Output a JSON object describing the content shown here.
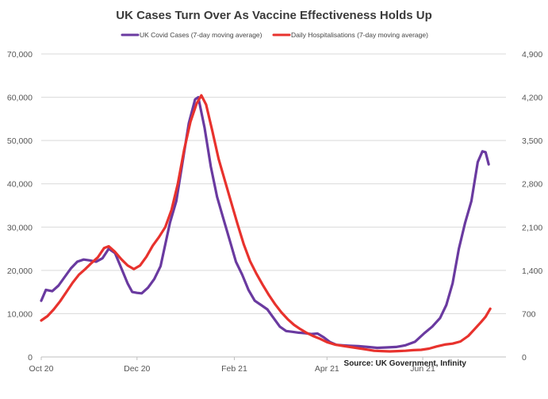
{
  "chart_data": {
    "type": "line",
    "title": "UK Cases Turn Over As Vaccine Effectiveness Holds Up",
    "source": "Source: UK Government, Infinity",
    "x_axis": {
      "range": [
        "2020-10-01",
        "2021-07-24"
      ],
      "tick_labels": [
        {
          "date": "2020-10-01",
          "label": "Oct 20"
        },
        {
          "date": "2020-12-01",
          "label": "Dec 20"
        },
        {
          "date": "2021-02-01",
          "label": "Feb 21"
        },
        {
          "date": "2021-04-01",
          "label": "Apr 21"
        },
        {
          "date": "2021-06-01",
          "label": "Jun 21"
        }
      ]
    },
    "y_axis_left": {
      "range": [
        0,
        70000
      ],
      "tick_labels": [
        "0",
        "10,000",
        "20,000",
        "30,000",
        "40,000",
        "50,000",
        "60,000",
        "70,000"
      ]
    },
    "y_axis_right": {
      "range": [
        0,
        4900
      ],
      "tick_labels": [
        "0",
        "700",
        "1,400",
        "2,100",
        "2,800",
        "3,500",
        "4,200",
        "4,900"
      ]
    },
    "grid": "horizontal",
    "legend_position": "top",
    "series": [
      {
        "name": "UK Covid Cases (7-day moving average)",
        "axis": "left",
        "color": "#6a3aa0",
        "points": [
          [
            "2020-10-01",
            13000
          ],
          [
            "2020-10-04",
            15500
          ],
          [
            "2020-10-08",
            15200
          ],
          [
            "2020-10-12",
            16500
          ],
          [
            "2020-10-16",
            18500
          ],
          [
            "2020-10-20",
            20500
          ],
          [
            "2020-10-24",
            22000
          ],
          [
            "2020-10-28",
            22500
          ],
          [
            "2020-11-01",
            22300
          ],
          [
            "2020-11-05",
            22000
          ],
          [
            "2020-11-09",
            22800
          ],
          [
            "2020-11-13",
            25000
          ],
          [
            "2020-11-17",
            24000
          ],
          [
            "2020-11-21",
            20500
          ],
          [
            "2020-11-25",
            17000
          ],
          [
            "2020-11-28",
            15000
          ],
          [
            "2020-12-01",
            14800
          ],
          [
            "2020-12-04",
            14700
          ],
          [
            "2020-12-08",
            16000
          ],
          [
            "2020-12-12",
            18000
          ],
          [
            "2020-12-16",
            21000
          ],
          [
            "2020-12-19",
            26000
          ],
          [
            "2020-12-22",
            31000
          ],
          [
            "2020-12-26",
            36000
          ],
          [
            "2020-12-30",
            45000
          ],
          [
            "2021-01-03",
            54000
          ],
          [
            "2021-01-07",
            59500
          ],
          [
            "2021-01-09",
            60000
          ],
          [
            "2021-01-13",
            53000
          ],
          [
            "2021-01-17",
            44000
          ],
          [
            "2021-01-21",
            37000
          ],
          [
            "2021-01-25",
            32000
          ],
          [
            "2021-01-29",
            27000
          ],
          [
            "2021-02-02",
            22000
          ],
          [
            "2021-02-06",
            19000
          ],
          [
            "2021-02-10",
            15500
          ],
          [
            "2021-02-14",
            13000
          ],
          [
            "2021-02-18",
            12000
          ],
          [
            "2021-02-22",
            11000
          ],
          [
            "2021-02-26",
            9000
          ],
          [
            "2021-03-02",
            7000
          ],
          [
            "2021-03-06",
            6000
          ],
          [
            "2021-03-10",
            5800
          ],
          [
            "2021-03-14",
            5600
          ],
          [
            "2021-03-18",
            5500
          ],
          [
            "2021-03-22",
            5300
          ],
          [
            "2021-03-26",
            5400
          ],
          [
            "2021-03-30",
            4500
          ],
          [
            "2021-04-03",
            3400
          ],
          [
            "2021-04-07",
            2800
          ],
          [
            "2021-04-11",
            2700
          ],
          [
            "2021-04-15",
            2600
          ],
          [
            "2021-04-21",
            2500
          ],
          [
            "2021-04-27",
            2300
          ],
          [
            "2021-05-03",
            2100
          ],
          [
            "2021-05-09",
            2200
          ],
          [
            "2021-05-15",
            2300
          ],
          [
            "2021-05-21",
            2700
          ],
          [
            "2021-05-27",
            3500
          ],
          [
            "2021-06-02",
            5500
          ],
          [
            "2021-06-07",
            7000
          ],
          [
            "2021-06-12",
            9000
          ],
          [
            "2021-06-16",
            12000
          ],
          [
            "2021-06-20",
            17000
          ],
          [
            "2021-06-24",
            25000
          ],
          [
            "2021-06-28",
            31000
          ],
          [
            "2021-07-02",
            36000
          ],
          [
            "2021-07-06",
            45000
          ],
          [
            "2021-07-09",
            47500
          ],
          [
            "2021-07-11",
            47300
          ],
          [
            "2021-07-13",
            44500
          ]
        ]
      },
      {
        "name": "Daily Hospitalisations (7-day moving average)",
        "axis": "right",
        "color": "#e8322d",
        "points": [
          [
            "2020-10-01",
            590
          ],
          [
            "2020-10-05",
            660
          ],
          [
            "2020-10-09",
            770
          ],
          [
            "2020-10-13",
            900
          ],
          [
            "2020-10-17",
            1050
          ],
          [
            "2020-10-21",
            1200
          ],
          [
            "2020-10-25",
            1330
          ],
          [
            "2020-10-29",
            1420
          ],
          [
            "2020-11-02",
            1520
          ],
          [
            "2020-11-06",
            1610
          ],
          [
            "2020-11-10",
            1760
          ],
          [
            "2020-11-13",
            1790
          ],
          [
            "2020-11-17",
            1700
          ],
          [
            "2020-11-21",
            1580
          ],
          [
            "2020-11-25",
            1480
          ],
          [
            "2020-11-29",
            1420
          ],
          [
            "2020-12-03",
            1480
          ],
          [
            "2020-12-07",
            1620
          ],
          [
            "2020-12-11",
            1800
          ],
          [
            "2020-12-15",
            1940
          ],
          [
            "2020-12-19",
            2100
          ],
          [
            "2020-12-23",
            2380
          ],
          [
            "2020-12-27",
            2800
          ],
          [
            "2020-12-31",
            3350
          ],
          [
            "2021-01-04",
            3800
          ],
          [
            "2021-01-08",
            4100
          ],
          [
            "2021-01-11",
            4230
          ],
          [
            "2021-01-14",
            4080
          ],
          [
            "2021-01-18",
            3650
          ],
          [
            "2021-01-22",
            3200
          ],
          [
            "2021-01-26",
            2850
          ],
          [
            "2021-01-30",
            2500
          ],
          [
            "2021-02-03",
            2150
          ],
          [
            "2021-02-07",
            1820
          ],
          [
            "2021-02-11",
            1550
          ],
          [
            "2021-02-15",
            1350
          ],
          [
            "2021-02-19",
            1170
          ],
          [
            "2021-02-23",
            1000
          ],
          [
            "2021-02-27",
            850
          ],
          [
            "2021-03-03",
            720
          ],
          [
            "2021-03-07",
            610
          ],
          [
            "2021-03-11",
            520
          ],
          [
            "2021-03-15",
            450
          ],
          [
            "2021-03-19",
            390
          ],
          [
            "2021-03-23",
            340
          ],
          [
            "2021-03-27",
            300
          ],
          [
            "2021-04-01",
            240
          ],
          [
            "2021-04-06",
            200
          ],
          [
            "2021-04-11",
            180
          ],
          [
            "2021-04-16",
            160
          ],
          [
            "2021-04-21",
            140
          ],
          [
            "2021-04-26",
            120
          ],
          [
            "2021-05-01",
            100
          ],
          [
            "2021-05-06",
            95
          ],
          [
            "2021-05-11",
            90
          ],
          [
            "2021-05-16",
            95
          ],
          [
            "2021-05-21",
            100
          ],
          [
            "2021-05-26",
            110
          ],
          [
            "2021-05-31",
            115
          ],
          [
            "2021-06-05",
            135
          ],
          [
            "2021-06-10",
            170
          ],
          [
            "2021-06-15",
            200
          ],
          [
            "2021-06-20",
            215
          ],
          [
            "2021-06-25",
            250
          ],
          [
            "2021-06-30",
            340
          ],
          [
            "2021-07-04",
            450
          ],
          [
            "2021-07-08",
            560
          ],
          [
            "2021-07-11",
            650
          ],
          [
            "2021-07-14",
            780
          ]
        ]
      }
    ]
  }
}
